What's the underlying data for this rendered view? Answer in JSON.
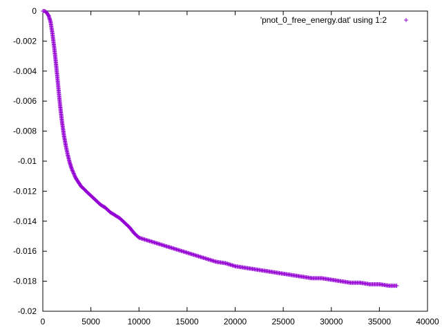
{
  "chart_data": {
    "type": "scatter",
    "title": "",
    "xlabel": "",
    "ylabel": "",
    "xlim": [
      0,
      40000
    ],
    "ylim": [
      -0.02,
      0
    ],
    "x_ticks": [
      0,
      5000,
      10000,
      15000,
      20000,
      25000,
      30000,
      35000,
      40000
    ],
    "x_tick_labels": [
      "0",
      "5000",
      "10000",
      "15000",
      "20000",
      "25000",
      "30000",
      "35000",
      "40000"
    ],
    "y_ticks": [
      0,
      -0.002,
      -0.004,
      -0.006,
      -0.008,
      -0.01,
      -0.012,
      -0.014,
      -0.016,
      -0.018,
      -0.02
    ],
    "y_tick_labels": [
      "0",
      "-0.002",
      "-0.004",
      "-0.006",
      "-0.008",
      "-0.01",
      "-0.012",
      "-0.014",
      "-0.016",
      "-0.018",
      "-0.02"
    ],
    "grid": false,
    "legend_position": "top-right",
    "marker": "plus",
    "series": [
      {
        "name": "'pnot_0_free_energy.dat' using 1:2",
        "color": "#9400d3",
        "x": [
          0,
          200,
          400,
          600,
          800,
          1000,
          1200,
          1400,
          1600,
          1800,
          2000,
          2200,
          2400,
          2600,
          2800,
          3000,
          3200,
          3400,
          3600,
          3800,
          4000,
          4200,
          4500,
          5000,
          5500,
          6000,
          6500,
          7000,
          7500,
          8000,
          8500,
          9000,
          9500,
          10000,
          11000,
          12000,
          13000,
          14000,
          15000,
          16000,
          17000,
          18000,
          19000,
          20000,
          21000,
          22000,
          23000,
          24000,
          25000,
          26000,
          27000,
          28000,
          29000,
          30000,
          31000,
          32000,
          33000,
          34000,
          35000,
          36000,
          36800
        ],
        "y": [
          0,
          0,
          -0.0001,
          -0.0003,
          -0.0007,
          -0.0015,
          -0.0025,
          -0.0037,
          -0.005,
          -0.0063,
          -0.0074,
          -0.0083,
          -0.009,
          -0.0096,
          -0.0101,
          -0.0105,
          -0.0108,
          -0.0111,
          -0.0113,
          -0.0115,
          -0.0117,
          -0.0118,
          -0.012,
          -0.0123,
          -0.0126,
          -0.0129,
          -0.0131,
          -0.0134,
          -0.0136,
          -0.0138,
          -0.0141,
          -0.0144,
          -0.0148,
          -0.0151,
          -0.0153,
          -0.0155,
          -0.0157,
          -0.0159,
          -0.0161,
          -0.0163,
          -0.0165,
          -0.0167,
          -0.0168,
          -0.017,
          -0.0171,
          -0.0172,
          -0.0173,
          -0.0174,
          -0.0175,
          -0.0176,
          -0.0177,
          -0.0178,
          -0.0178,
          -0.0179,
          -0.018,
          -0.0181,
          -0.0181,
          -0.0182,
          -0.0182,
          -0.0183,
          -0.0183
        ]
      }
    ]
  }
}
